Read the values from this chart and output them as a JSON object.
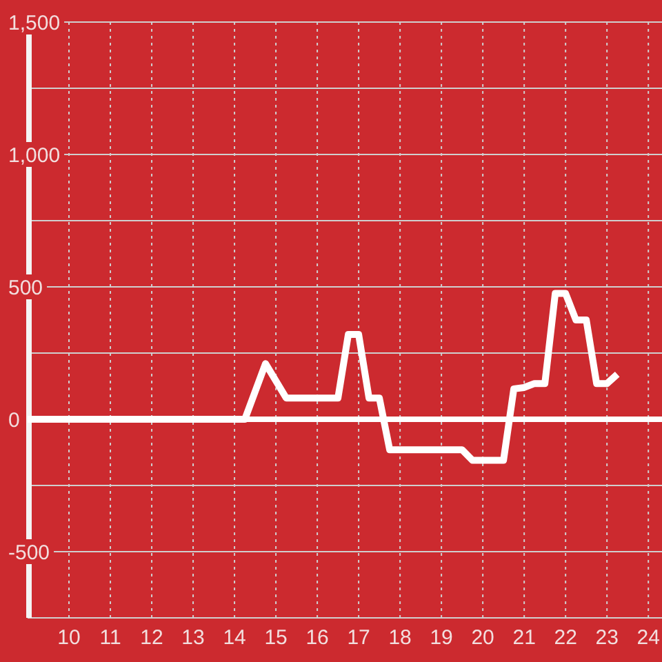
{
  "chart_data": {
    "type": "line",
    "x": [
      9,
      14.25,
      14.75,
      15.25,
      16.5,
      16.75,
      17.0,
      17.25,
      17.5,
      17.75,
      19.5,
      19.75,
      20.5,
      20.75,
      21.0,
      21.25,
      21.5,
      21.75,
      22.0,
      22.25,
      22.5,
      22.75,
      23.0,
      23.25
    ],
    "series": [
      {
        "color": "#ffffff",
        "values": [
          0,
          0,
          210,
          80,
          80,
          320,
          320,
          80,
          80,
          -115,
          -115,
          -155,
          -155,
          115,
          120,
          135,
          135,
          475,
          475,
          375,
          375,
          135,
          135,
          170
        ]
      }
    ],
    "xlim": [
      9,
      24.33
    ],
    "ylim": [
      -750,
      1500
    ],
    "xticks": [
      10,
      11,
      12,
      13,
      14,
      15,
      16,
      17,
      18,
      19,
      20,
      21,
      22,
      23,
      24
    ],
    "yticks": [
      {
        "value": -750,
        "label": null
      },
      -500,
      {
        "value": -250,
        "label": null
      },
      0,
      {
        "value": 250,
        "label": null
      },
      500,
      {
        "value": 750,
        "label": null
      },
      {
        "value": 1000,
        "label": "1,000"
      },
      {
        "value": 1250,
        "label": null
      },
      {
        "value": 1500,
        "label": "1,500"
      }
    ],
    "grid": true,
    "ref_lines": [
      {
        "axis": "y",
        "value": 0,
        "color": "#ffffff"
      }
    ]
  }
}
